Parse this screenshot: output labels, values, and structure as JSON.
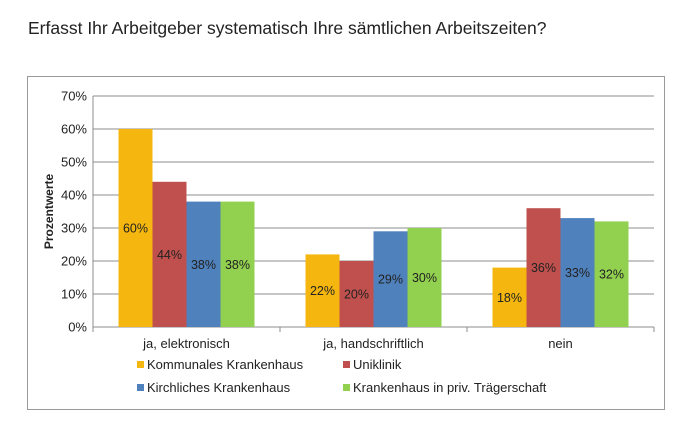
{
  "page": {
    "title": "Erfasst Ihr Arbeitgeber systematisch Ihre sämtlichen Arbeitszeiten?"
  },
  "chart_data": {
    "type": "bar",
    "title": "",
    "xlabel": "",
    "ylabel": "Prozentwerte",
    "ylim": [
      0,
      70
    ],
    "ytick_step": 10,
    "ytick_suffix": "%",
    "grid": true,
    "legend_position": "bottom",
    "categories": [
      "ja, elektronisch",
      "ja, handschriftlich",
      "nein"
    ],
    "series": [
      {
        "name": "Kommunales Krankenhaus",
        "color": "#f5b70f",
        "values": [
          60,
          22,
          18
        ]
      },
      {
        "name": "Uniklinik",
        "color": "#c0504d",
        "values": [
          44,
          20,
          36
        ]
      },
      {
        "name": "Kirchliches Krankenhaus",
        "color": "#4f81bd",
        "values": [
          38,
          29,
          33
        ]
      },
      {
        "name": "Krankenhaus in priv. Trägerschaft",
        "color": "#92d050",
        "values": [
          38,
          30,
          32
        ]
      }
    ]
  }
}
